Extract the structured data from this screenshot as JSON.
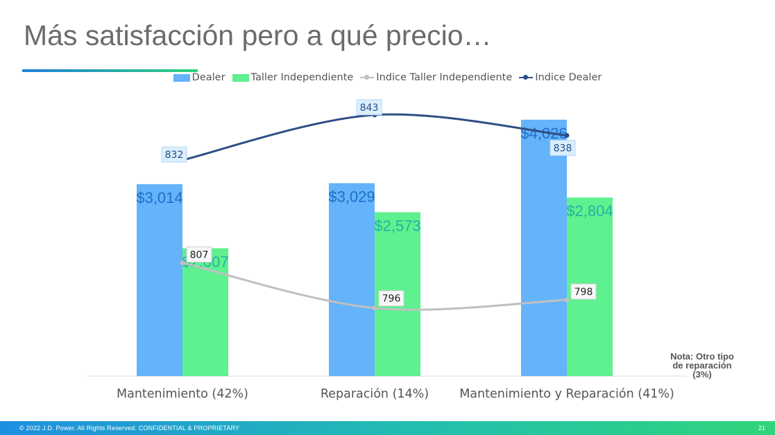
{
  "slide": {
    "title": "Más satisfacción pero a qué precio…",
    "note": "Nota: Otro tipo de reparación (3%)",
    "footer": "© 2022 J.D. Power. All Rights Reserved. CONFIDENTIAL & PROPRIETARY",
    "page_number": "21"
  },
  "colors": {
    "dealer_bar": "#64b3fb",
    "taller_bar": "#5ff08f",
    "indice_taller_line": "#c0c0c0",
    "indice_dealer_line": "#2e4e86",
    "dealer_label": "#1f6fc8",
    "taller_label": "#24b3a3"
  },
  "chart_data": {
    "type": "bar",
    "categories": [
      "Mantenimiento (42%)",
      "Reparación (14%)",
      "Mantenimiento y Reparación (41%)"
    ],
    "series": [
      {
        "name": "Dealer",
        "kind": "bar",
        "values": [
          3014,
          3029,
          4026
        ],
        "labels": [
          "$3,014",
          "$3,029",
          "$4,026"
        ]
      },
      {
        "name": "Taller Independiente",
        "kind": "bar",
        "values": [
          2007,
          2573,
          2804
        ],
        "labels": [
          "$2,007",
          "$2,573",
          "$2,804"
        ]
      },
      {
        "name": "Indice Taller Independiente",
        "kind": "line",
        "values": [
          807,
          796,
          798
        ],
        "labels": [
          "807",
          "796",
          "798"
        ]
      },
      {
        "name": "Indice Dealer",
        "kind": "line",
        "values": [
          832,
          843,
          838
        ],
        "labels": [
          "832",
          "843",
          "838"
        ]
      }
    ],
    "bar_axis": {
      "ylim": [
        0,
        4600
      ]
    },
    "index_axis": {
      "ylim": [
        785,
        845
      ]
    },
    "legend_position": "top",
    "grid": false
  }
}
